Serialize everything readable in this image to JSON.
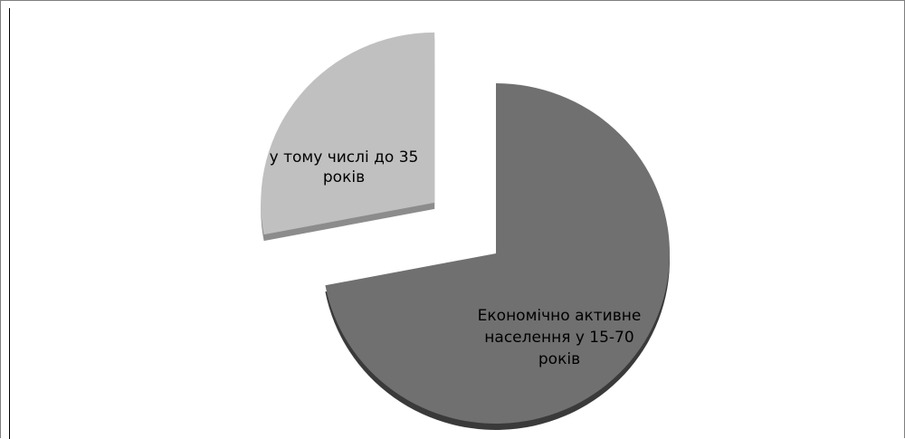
{
  "chart_data": {
    "type": "pie",
    "style": "3d-exploded",
    "categories": [
      "Економічно активне населення у 15-70 років",
      "у тому числі до 35 років"
    ],
    "values": [
      72,
      28
    ],
    "colors": [
      "#707070",
      "#c0c0c0"
    ],
    "edge_colors": [
      "#3a3a3a",
      "#8c8c8c"
    ],
    "labels": [
      [
        "Економічно активне",
        "населення у 15-70",
        "років"
      ],
      [
        "у тому числі до 35",
        "років"
      ]
    ],
    "title": "",
    "legend": "none"
  }
}
